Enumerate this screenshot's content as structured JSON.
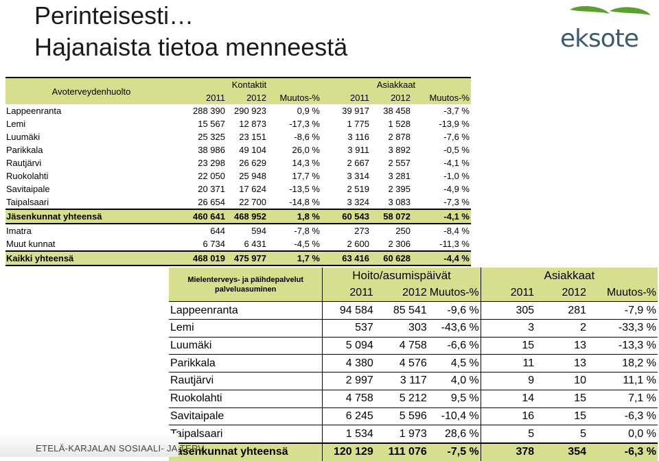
{
  "title": {
    "line1": "Perinteisesti…",
    "line2": "Hajanaista tietoa menneestä"
  },
  "logo": {
    "text": "eksote",
    "icon": "leaf-logo-icon",
    "colors": [
      "#5aa02c",
      "#3d5a6e"
    ]
  },
  "footer": {
    "text": "ETELÄ-KARJALAN SOSIAALI- JA TERV"
  },
  "colors": {
    "header_fill": "#d7df8f"
  },
  "table1": {
    "corner_label": "Avoterveydenhuolto",
    "group1": "Kontaktit",
    "group2": "Asiakkaat",
    "sub": [
      "2011",
      "2012",
      "Muutos-%",
      "2011",
      "2012",
      "Muutos-%"
    ],
    "rows": [
      [
        "Lappeenranta",
        "288 390",
        "290 923",
        "0,9 %",
        "39 917",
        "38 458",
        "-3,7 %"
      ],
      [
        "Lemi",
        "15 567",
        "12 873",
        "-17,3 %",
        "1 775",
        "1 528",
        "-13,9 %"
      ],
      [
        "Luumäki",
        "25 325",
        "23 151",
        "-8,6 %",
        "3 116",
        "2 878",
        "-7,6 %"
      ],
      [
        "Parikkala",
        "38 986",
        "49 104",
        "26,0 %",
        "3 911",
        "3 892",
        "-0,5 %"
      ],
      [
        "Rautjärvi",
        "23 298",
        "26 629",
        "14,3 %",
        "2 667",
        "2 557",
        "-4,1 %"
      ],
      [
        "Ruokolahti",
        "22 050",
        "25 948",
        "17,7 %",
        "3 314",
        "3 281",
        "-1,0 %"
      ],
      [
        "Savitaipale",
        "20 371",
        "17 624",
        "-13,5 %",
        "2 519",
        "2 395",
        "-4,9 %"
      ],
      [
        "Taipalsaari",
        "26 654",
        "22 700",
        "-14,8 %",
        "3 324",
        "3 083",
        "-7,3 %"
      ],
      [
        "Jäsenkunnat yhteensä",
        "460 641",
        "468 952",
        "1,8 %",
        "60 543",
        "58 072",
        "-4,1 %"
      ],
      [
        "Imatra",
        "644",
        "594",
        "-7,8 %",
        "273",
        "250",
        "-8,4 %"
      ],
      [
        "Muut kunnat",
        "6 734",
        "6 431",
        "-4,5 %",
        "2 600",
        "2 306",
        "-11,3 %"
      ],
      [
        "Kaikki yhteensä",
        "468 019",
        "475 977",
        "1,7 %",
        "63 416",
        "60 628",
        "-4,4 %"
      ]
    ]
  },
  "table2": {
    "corner_label_1": "Mielenterveys- ja päihdepalvelut",
    "corner_label_2": "palveluasuminen",
    "group1": "Hoito/asumispäivät",
    "group2": "Asiakkaat",
    "sub": [
      "2011",
      "2012",
      "Muutos-%",
      "2011",
      "2012",
      "Muutos-%"
    ],
    "rows": [
      [
        "Lappeenranta",
        "94 584",
        "85 541",
        "-9,6 %",
        "305",
        "281",
        "-7,9 %"
      ],
      [
        "Lemi",
        "537",
        "303",
        "-43,6 %",
        "3",
        "2",
        "-33,3 %"
      ],
      [
        "Luumäki",
        "5 094",
        "4 758",
        "-6,6 %",
        "15",
        "13",
        "-13,3 %"
      ],
      [
        "Parikkala",
        "4 380",
        "4 576",
        "4,5 %",
        "11",
        "13",
        "18,2 %"
      ],
      [
        "Rautjärvi",
        "2 997",
        "3 117",
        "4,0 %",
        "9",
        "10",
        "11,1 %"
      ],
      [
        "Ruokolahti",
        "4 758",
        "5 212",
        "9,5 %",
        "14",
        "15",
        "7,1 %"
      ],
      [
        "Savitaipale",
        "6 245",
        "5 596",
        "-10,4 %",
        "16",
        "15",
        "-6,3 %"
      ],
      [
        "Taipalsaari",
        "1 534",
        "1 973",
        "28,6 %",
        "5",
        "5",
        "0,0 %"
      ],
      [
        "Jäsenkunnat yhteensä",
        "120 129",
        "111 076",
        "-7,5 %",
        "378",
        "354",
        "-6,3 %"
      ]
    ]
  }
}
